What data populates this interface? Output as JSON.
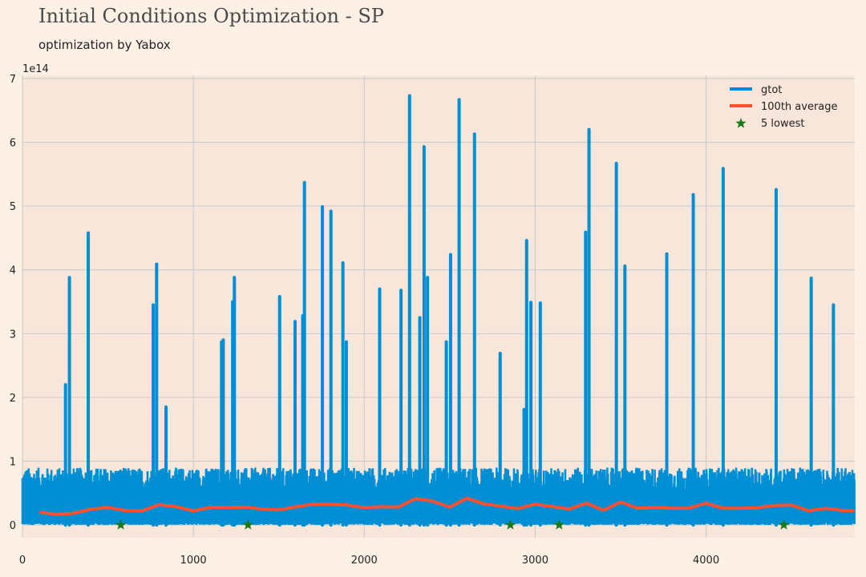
{
  "header": {
    "title": "Initial Conditions Optimization - SP",
    "subtitle": "optimization by Yabox"
  },
  "colors": {
    "background": "#fdf1e6",
    "plot_background": "#f9e6da",
    "grid": "#c9c9c9",
    "gtot": "#008fd5",
    "average": "#fc4f30",
    "lowest": "#1a7a1a"
  },
  "chart_data": {
    "type": "line",
    "title": "Initial Conditions Optimization - SP",
    "subtitle": "optimization by Yabox",
    "xlabel": "",
    "ylabel": "",
    "y_scale_label": "1e14",
    "xlim": [
      0,
      4870
    ],
    "ylim": [
      -0.2,
      7.05
    ],
    "x_ticks": [
      0,
      1000,
      2000,
      3000,
      4000
    ],
    "y_ticks": [
      0,
      1,
      2,
      3,
      4,
      5,
      6,
      7
    ],
    "grid": true,
    "legend_position": "top-right",
    "series": [
      {
        "name": "gtot",
        "style": "line",
        "n_points": 4870,
        "baseline_band": [
          0,
          0.9
        ],
        "spikes": [
          {
            "x": 252,
            "y": 2.2
          },
          {
            "x": 275,
            "y": 3.88
          },
          {
            "x": 385,
            "y": 4.58
          },
          {
            "x": 765,
            "y": 3.45
          },
          {
            "x": 785,
            "y": 4.09
          },
          {
            "x": 840,
            "y": 1.85
          },
          {
            "x": 1165,
            "y": 2.87
          },
          {
            "x": 1175,
            "y": 2.9
          },
          {
            "x": 1230,
            "y": 3.5
          },
          {
            "x": 1240,
            "y": 3.88
          },
          {
            "x": 1505,
            "y": 3.58
          },
          {
            "x": 1595,
            "y": 3.19
          },
          {
            "x": 1640,
            "y": 3.28
          },
          {
            "x": 1650,
            "y": 5.37
          },
          {
            "x": 1755,
            "y": 4.99
          },
          {
            "x": 1805,
            "y": 4.92
          },
          {
            "x": 1875,
            "y": 4.11
          },
          {
            "x": 1895,
            "y": 2.87
          },
          {
            "x": 2090,
            "y": 3.7
          },
          {
            "x": 2215,
            "y": 3.68
          },
          {
            "x": 2265,
            "y": 6.73
          },
          {
            "x": 2325,
            "y": 3.25
          },
          {
            "x": 2350,
            "y": 5.93
          },
          {
            "x": 2370,
            "y": 3.88
          },
          {
            "x": 2480,
            "y": 2.87
          },
          {
            "x": 2505,
            "y": 4.24
          },
          {
            "x": 2555,
            "y": 6.67
          },
          {
            "x": 2645,
            "y": 6.13
          },
          {
            "x": 2795,
            "y": 2.69
          },
          {
            "x": 2935,
            "y": 1.81
          },
          {
            "x": 2950,
            "y": 4.46
          },
          {
            "x": 2975,
            "y": 3.49
          },
          {
            "x": 3030,
            "y": 3.48
          },
          {
            "x": 3295,
            "y": 4.59
          },
          {
            "x": 3315,
            "y": 6.2
          },
          {
            "x": 3475,
            "y": 5.67
          },
          {
            "x": 3525,
            "y": 4.06
          },
          {
            "x": 3770,
            "y": 4.25
          },
          {
            "x": 3925,
            "y": 5.18
          },
          {
            "x": 4100,
            "y": 5.59
          },
          {
            "x": 4410,
            "y": 5.26
          },
          {
            "x": 4615,
            "y": 3.87
          },
          {
            "x": 4745,
            "y": 3.45
          }
        ]
      },
      {
        "name": "100th average",
        "style": "line",
        "x": [
          100,
          200,
          300,
          400,
          500,
          600,
          700,
          800,
          900,
          1000,
          1100,
          1200,
          1300,
          1400,
          1500,
          1600,
          1700,
          1800,
          1900,
          2000,
          2100,
          2200,
          2300,
          2400,
          2500,
          2600,
          2700,
          2800,
          2900,
          3000,
          3100,
          3200,
          3300,
          3400,
          3500,
          3600,
          3700,
          3800,
          3900,
          4000,
          4100,
          4200,
          4300,
          4400,
          4500,
          4600,
          4700,
          4800,
          4870
        ],
        "values": [
          0.18,
          0.17,
          0.2,
          0.23,
          0.26,
          0.24,
          0.22,
          0.3,
          0.27,
          0.21,
          0.26,
          0.26,
          0.3,
          0.24,
          0.24,
          0.28,
          0.33,
          0.31,
          0.33,
          0.29,
          0.27,
          0.28,
          0.42,
          0.36,
          0.3,
          0.4,
          0.34,
          0.29,
          0.26,
          0.34,
          0.27,
          0.24,
          0.36,
          0.22,
          0.34,
          0.25,
          0.27,
          0.26,
          0.25,
          0.33,
          0.28,
          0.26,
          0.27,
          0.32,
          0.31,
          0.24,
          0.26,
          0.22,
          0.23
        ]
      },
      {
        "name": "5 lowest",
        "style": "scatter",
        "marker": "star",
        "x": [
          575,
          1320,
          2855,
          3140,
          4455
        ],
        "values": [
          0.0,
          0.0,
          0.0,
          0.0,
          0.0
        ]
      }
    ]
  }
}
